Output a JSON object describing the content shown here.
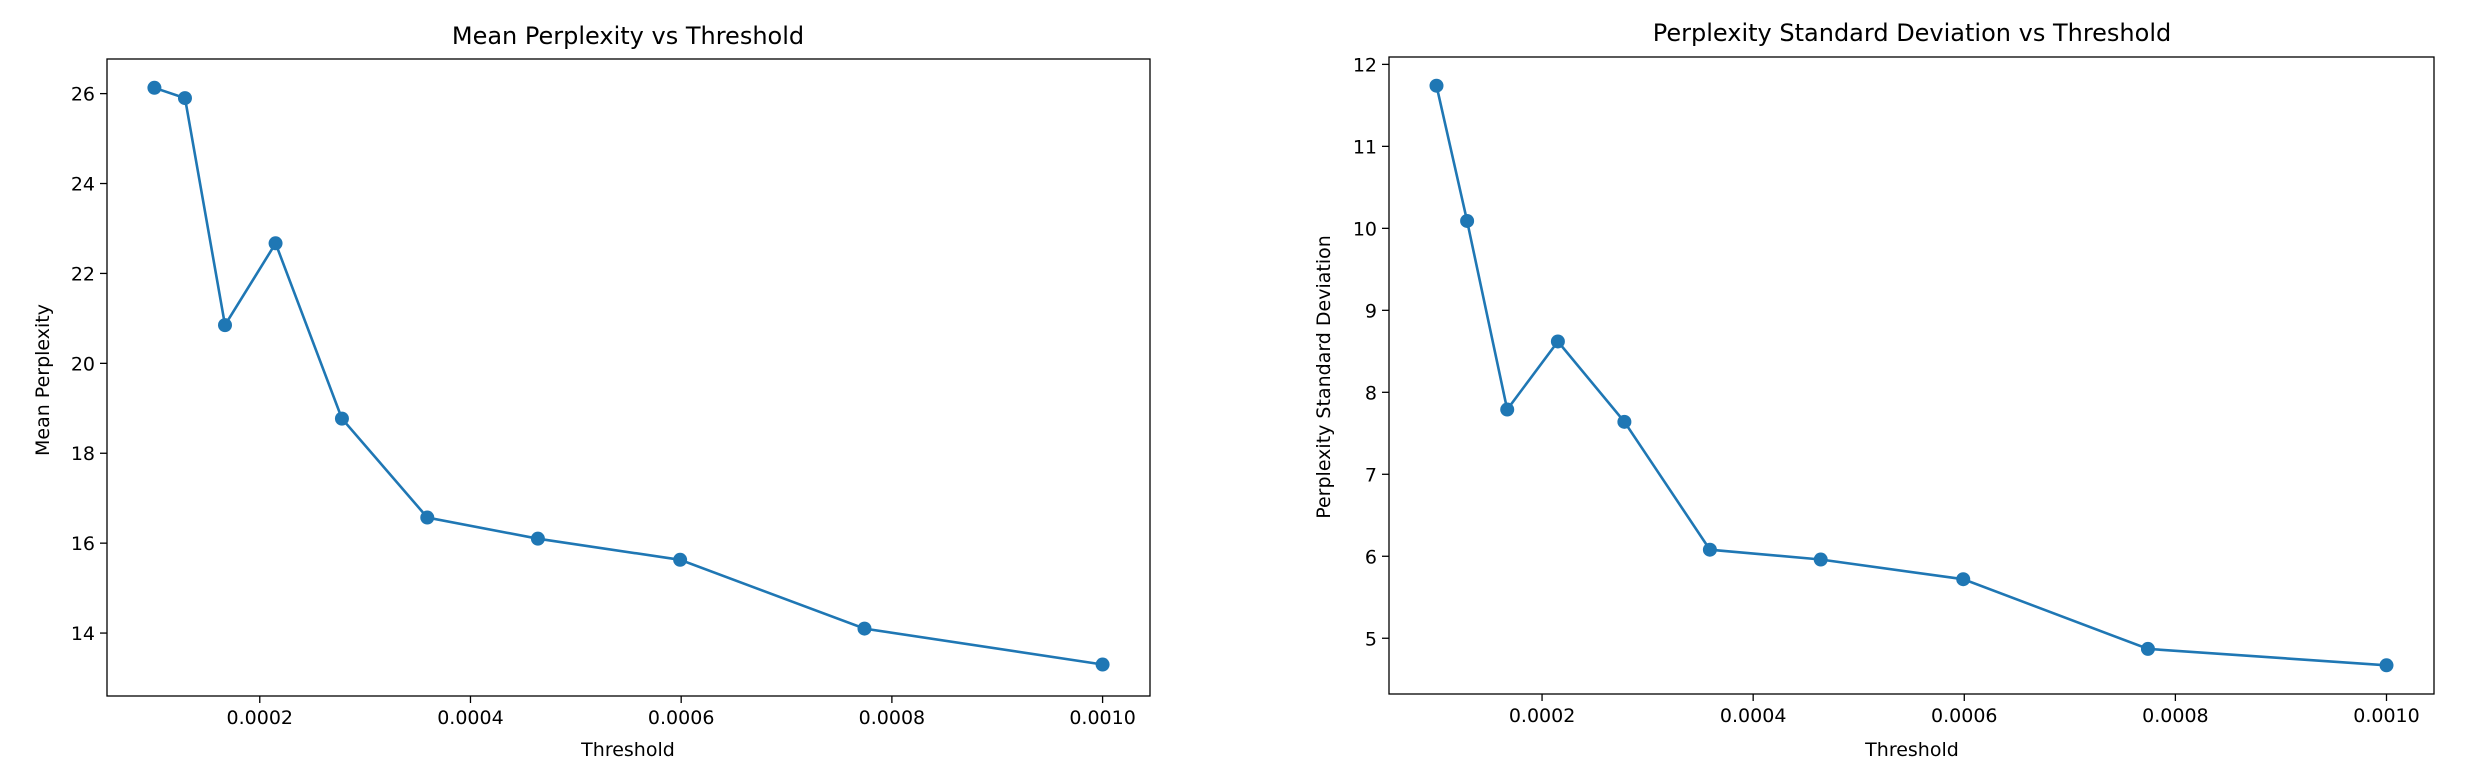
{
  "figure": {
    "background": "#ffffff",
    "series_color": "#1f77b4"
  },
  "chart_data": [
    {
      "type": "line",
      "marker": "circle",
      "title": "Mean Perplexity vs Threshold",
      "xlabel": "Threshold",
      "ylabel": "Mean Perplexity",
      "xlim": [
        5.5e-05,
        0.001045
      ],
      "ylim": [
        12.6,
        26.77
      ],
      "xticks": [
        0.0002,
        0.0004,
        0.0006,
        0.0008,
        0.001
      ],
      "xtick_labels": [
        "0.0002",
        "0.0004",
        "0.0006",
        "0.0008",
        "0.0010"
      ],
      "yticks": [
        14,
        16,
        18,
        20,
        22,
        24,
        26
      ],
      "ytick_labels": [
        "14",
        "16",
        "18",
        "20",
        "22",
        "24",
        "26"
      ],
      "grid": false,
      "series": [
        {
          "x": [
            0.0001,
            0.000129,
            0.000167,
            0.000215,
            0.000278,
            0.000359,
            0.000464,
            0.000599,
            0.000774,
            0.001
          ],
          "values": [
            26.13,
            25.9,
            20.85,
            22.67,
            18.77,
            16.57,
            16.1,
            15.63,
            14.1,
            13.3
          ]
        }
      ]
    },
    {
      "type": "line",
      "marker": "circle",
      "title": "Perplexity Standard Deviation vs Threshold",
      "xlabel": "Threshold",
      "ylabel": "Perplexity Standard Deviation",
      "xlim": [
        5.5e-05,
        0.001045
      ],
      "ylim": [
        4.32,
        12.09
      ],
      "xticks": [
        0.0002,
        0.0004,
        0.0006,
        0.0008,
        0.001
      ],
      "xtick_labels": [
        "0.0002",
        "0.0004",
        "0.0006",
        "0.0008",
        "0.0010"
      ],
      "yticks": [
        5,
        6,
        7,
        8,
        9,
        10,
        11,
        12
      ],
      "ytick_labels": [
        "5",
        "6",
        "7",
        "8",
        "9",
        "10",
        "11",
        "12"
      ],
      "grid": false,
      "series": [
        {
          "x": [
            0.0001,
            0.000129,
            0.000167,
            0.000215,
            0.000278,
            0.000359,
            0.000464,
            0.000599,
            0.000774,
            0.001
          ],
          "values": [
            11.74,
            10.09,
            7.79,
            8.62,
            7.64,
            6.08,
            5.96,
            5.72,
            4.87,
            4.67
          ]
        }
      ]
    }
  ]
}
